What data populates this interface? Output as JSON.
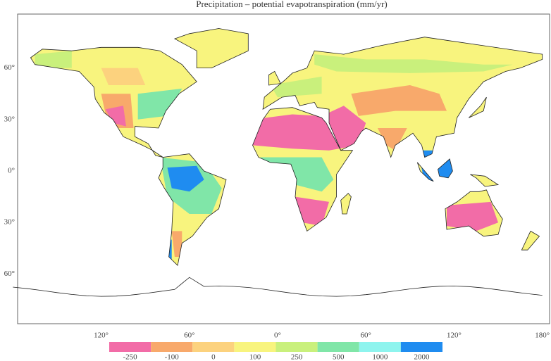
{
  "title": "Precipitation – potential evapotranspiration (mm/yr)",
  "lat_labels": [
    "60°",
    "30°",
    "0°",
    "30°",
    "60°"
  ],
  "lon_labels": [
    "120°",
    "60°",
    "0°",
    "60°",
    "120°",
    "180°"
  ],
  "colorbar": {
    "labels": [
      -250,
      -100,
      0,
      100,
      250,
      500,
      1000,
      2000
    ],
    "colors": [
      "#f26ca7",
      "#f8a96b",
      "#fcd27e",
      "#f8f47e",
      "#c9f07c",
      "#80e6a8",
      "#8ef4ee",
      "#1f8cf0"
    ]
  }
}
